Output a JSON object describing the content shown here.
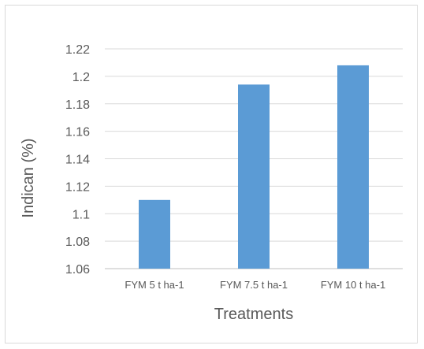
{
  "chart_data": {
    "type": "bar",
    "categories": [
      "FYM 5 t ha-1",
      "FYM 7.5 t ha-1",
      "FYM 10 t ha-1"
    ],
    "series": [
      {
        "values": [
          1.11,
          1.194,
          1.208
        ],
        "color": "#5b9bd5"
      }
    ],
    "title": "",
    "xlabel": "Treatments",
    "ylabel": "Indican (%)",
    "ylim": [
      1.06,
      1.22
    ],
    "yticks": [
      1.06,
      1.08,
      1.1,
      1.12,
      1.14,
      1.16,
      1.18,
      1.2,
      1.22
    ],
    "ytick_labels": [
      "1.06",
      "1.08",
      "1.1",
      "1.12",
      "1.14",
      "1.16",
      "1.18",
      "1.2",
      "1.22"
    ],
    "grid": true,
    "legend": "none"
  }
}
